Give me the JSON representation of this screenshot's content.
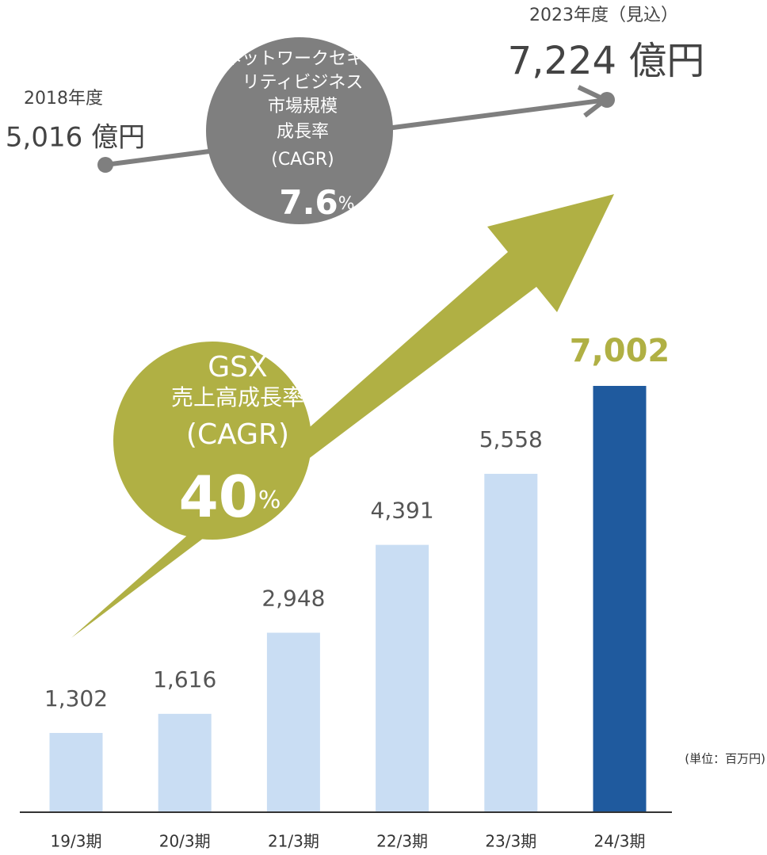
{
  "chart_data": {
    "type": "bar",
    "categories": [
      "19/3期",
      "20/3期",
      "21/3期",
      "22/3期",
      "23/3期",
      "24/3期"
    ],
    "values": [
      1302,
      1616,
      2948,
      4391,
      5558,
      7002
    ],
    "value_labels": [
      "1,302",
      "1,616",
      "2,948",
      "4,391",
      "5,558",
      "7,002"
    ],
    "colors": [
      "#c9ddf3",
      "#c9ddf3",
      "#c9ddf3",
      "#c9ddf3",
      "#c9ddf3",
      "#1f5a9e"
    ],
    "label_colors": [
      "#555555",
      "#555555",
      "#555555",
      "#555555",
      "#555555",
      "#b0b044"
    ],
    "unit": "(単位：百万円)",
    "market": {
      "start_label": "2018年度",
      "start_value": "5,016 億円",
      "end_label": "2023年度（見込）",
      "end_value": "7,224 億円",
      "circle_lines": [
        "ネットワークセキュ",
        "リティビジネス",
        "市場規模",
        "成長率",
        "(CAGR)"
      ],
      "rate": "7.6",
      "rate_unit": "%"
    },
    "gsx": {
      "lines": [
        "GSX",
        "売上高成長率",
        "(CAGR)"
      ],
      "rate": "40",
      "rate_unit": "%"
    }
  }
}
